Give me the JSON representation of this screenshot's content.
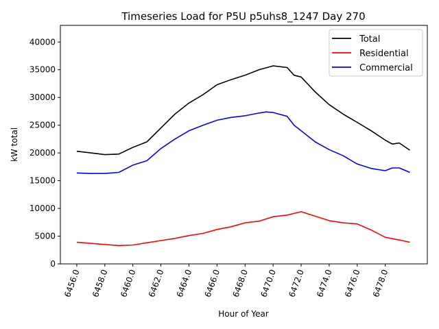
{
  "chart_data": {
    "type": "line",
    "title": "Timeseries Load for P5U p5uhs8_1247  Day 270",
    "xlabel": "Hour of Year",
    "ylabel": "kW total",
    "xlim": [
      6454.83,
      6481.0
    ],
    "ylim": [
      0,
      43000
    ],
    "grid": false,
    "legend_position": "top-right",
    "xticks": [
      6456,
      6458,
      6460,
      6462,
      6464,
      6466,
      6468,
      6470,
      6472,
      6474,
      6476,
      6478
    ],
    "xtick_labels": [
      "6456.0",
      "6458.0",
      "6460.0",
      "6462.0",
      "6464.0",
      "6466.0",
      "6468.0",
      "6470.0",
      "6472.0",
      "6474.0",
      "6476.0",
      "6478.0"
    ],
    "yticks": [
      0,
      5000,
      10000,
      15000,
      20000,
      25000,
      30000,
      35000,
      40000
    ],
    "ytick_labels": [
      "0",
      "5000",
      "10000",
      "15000",
      "20000",
      "25000",
      "30000",
      "35000",
      "40000"
    ],
    "series": [
      {
        "name": "Total",
        "color": "#000000",
        "x": [
          6456,
          6457,
          6458,
          6459,
          6460,
          6461,
          6462,
          6463,
          6464,
          6465,
          6466,
          6467,
          6468,
          6469,
          6470,
          6471,
          6471.5,
          6472,
          6473,
          6474,
          6475,
          6476,
          6477,
          6478,
          6478.5,
          6479,
          6479.75
        ],
        "y": [
          20300,
          20000,
          19700,
          19800,
          21000,
          22000,
          24500,
          27000,
          29000,
          30500,
          32300,
          33200,
          34000,
          35000,
          35700,
          35400,
          34000,
          33700,
          31000,
          28700,
          27000,
          25500,
          24000,
          22300,
          21600,
          21800,
          20500
        ]
      },
      {
        "name": "Residential",
        "color": "#ff0000",
        "x": [
          6456,
          6457,
          6458,
          6459,
          6460,
          6461,
          6462,
          6463,
          6464,
          6465,
          6466,
          6467,
          6468,
          6469,
          6470,
          6471,
          6472,
          6473,
          6474,
          6475,
          6476,
          6477,
          6478,
          6479,
          6479.75
        ],
        "y": [
          3900,
          3700,
          3500,
          3300,
          3400,
          3800,
          4200,
          4600,
          5100,
          5500,
          6200,
          6700,
          7400,
          7700,
          8500,
          8800,
          9400,
          8600,
          7800,
          7400,
          7200,
          6100,
          4800,
          4300,
          3900
        ]
      },
      {
        "name": "Commercial",
        "color": "#0000ff",
        "x": [
          6456,
          6457,
          6458,
          6459,
          6460,
          6461,
          6462,
          6463,
          6464,
          6465,
          6466,
          6467,
          6468,
          6469,
          6469.5,
          6470,
          6471,
          6471.5,
          6472,
          6473,
          6474,
          6475,
          6476,
          6477,
          6478,
          6478.5,
          6479,
          6479.75
        ],
        "y": [
          16400,
          16300,
          16300,
          16500,
          17800,
          18600,
          20800,
          22500,
          24000,
          25000,
          25900,
          26400,
          26700,
          27200,
          27400,
          27300,
          26600,
          25000,
          24000,
          22000,
          20600,
          19500,
          18000,
          17200,
          16800,
          17300,
          17300,
          16500
        ]
      }
    ]
  }
}
